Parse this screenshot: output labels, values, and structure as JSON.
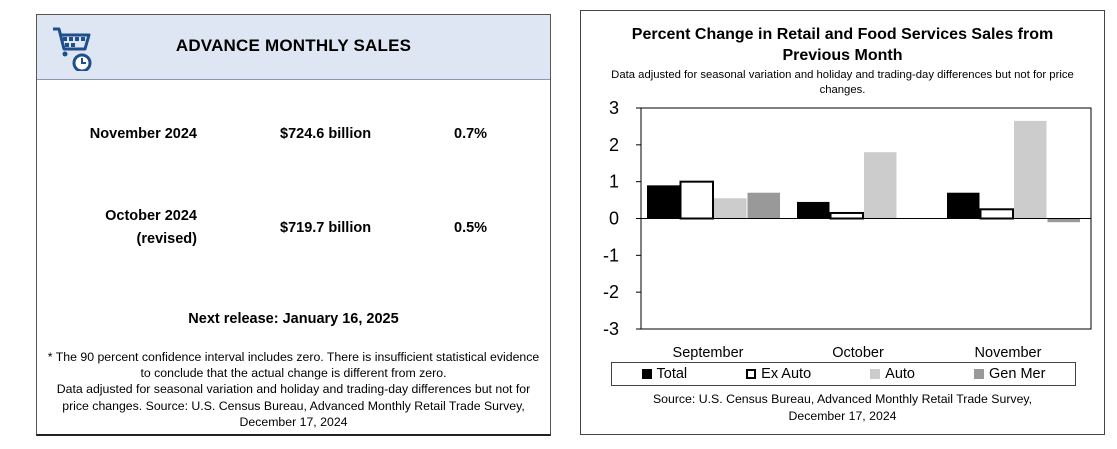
{
  "summary": {
    "title": "ADVANCE MONTHLY SALES",
    "rows": [
      {
        "month": "November 2024",
        "month_note": "",
        "value": "$724.6 billion",
        "change": "0.7%"
      },
      {
        "month": "October 2024",
        "month_note": "(revised)",
        "value": "$719.7 billion",
        "change": "0.5%"
      }
    ],
    "next_release": "Next release: January 16, 2025",
    "footnote_1": "* The 90 percent confidence interval includes zero. There is insufficient statistical evidence to conclude that the actual change is different from zero.",
    "footnote_2": "Data adjusted for seasonal variation and holiday and trading-day differences but not for price changes. Source: U.S. Census Bureau, Advanced Monthly Retail Trade Survey, December 17, 2024",
    "logo_icon": "shopping-cart-clock-icon"
  },
  "chart_data": {
    "type": "bar",
    "title": "Percent Change in Retail and Food Services Sales from Previous Month",
    "subtitle": "Data adjusted for seasonal variation and holiday and trading-day differences but not for price changes.",
    "categories": [
      "September",
      "October",
      "November"
    ],
    "ylim": [
      -3,
      3
    ],
    "yticks": [
      3,
      2,
      1,
      0,
      -1,
      -2,
      -3
    ],
    "series": [
      {
        "name": "Total",
        "color": "#000000",
        "values": [
          0.9,
          0.45,
          0.7
        ]
      },
      {
        "name": "Ex Auto",
        "color": "#ffffff",
        "values": [
          1.0,
          0.15,
          0.25
        ]
      },
      {
        "name": "Auto",
        "color": "#cccccc",
        "values": [
          0.55,
          1.8,
          2.65
        ]
      },
      {
        "name": "Gen Mer",
        "color": "#999999",
        "values": [
          0.7,
          0.0,
          -0.1
        ]
      }
    ],
    "source": "Source: U.S. Census Bureau, Advanced Monthly Retail Trade Survey, December 17, 2024"
  }
}
